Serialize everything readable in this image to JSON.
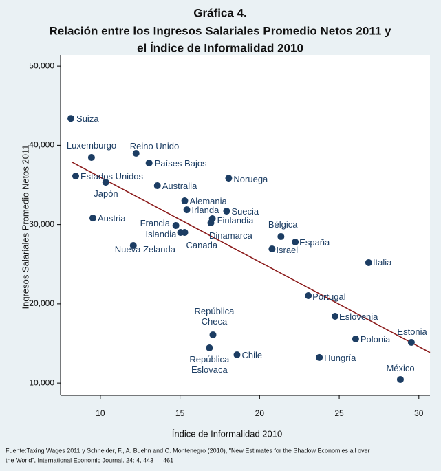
{
  "chart_data": {
    "type": "scatter",
    "title": [
      "Gráfica 4.",
      "Relación entre los Ingresos Salariales Promedio Netos 2011 y",
      "el Índice de Informalidad 2010"
    ],
    "xlabel": "Índice de Informalidad 2010",
    "ylabel": "Ingresos Salariales Promedio Netos 2011",
    "source": [
      "Fuente:Taxing Wages 2011 y Schneider, F., A. Buehn and C. Montenegro (2010), \"New Estimates for the Shadow Economies all over",
      "the World\", International Economic Journal. 24: 4, 443 — 461"
    ],
    "labels": [
      "Suiza",
      "Luxemburgo",
      "Reino Unido",
      "Países Bajos",
      "Estados Unidos",
      "Japón",
      "Australia",
      "Noruega",
      "Alemania",
      "Irlanda",
      "Suecia",
      "Finlandia",
      "Dinamarca",
      "Austria",
      "Francia",
      "Islandia",
      "Canada",
      "Nueva Zelanda",
      "Bélgica",
      "Israel",
      "España",
      "Italia",
      "Portugal",
      "Eslovenia",
      "República\nCheca",
      "República\nEslovaca",
      "Chile",
      "Hungría",
      "Polonia",
      "Estonia",
      "México"
    ],
    "x": [
      8.15,
      9.44,
      12.24,
      13.06,
      8.45,
      10.34,
      13.58,
      18.06,
      15.3,
      15.43,
      17.93,
      17.03,
      16.94,
      9.53,
      14.74,
      15.04,
      15.3,
      12.07,
      21.34,
      20.78,
      22.24,
      26.85,
      23.06,
      24.74,
      17.07,
      16.85,
      18.58,
      23.75,
      26.03,
      29.53,
      28.84
    ],
    "values": [
      43400,
      38470,
      38990,
      37770,
      36120,
      35340,
      34910,
      35860,
      33000,
      31870,
      31700,
      30750,
      30220,
      30830,
      29880,
      29010,
      29010,
      27360,
      28490,
      26930,
      27800,
      25200,
      21030,
      18430,
      16090,
      14440,
      13570,
      13230,
      15570,
      15130,
      10450
    ],
    "color": "#1c3d63",
    "trend": {
      "x": [
        8.2,
        30.7
      ],
      "values": [
        37900,
        13850
      ],
      "color": "#8b1a1a"
    },
    "xlim": [
      7.5,
      30.7
    ],
    "ylim": [
      8450,
      51400
    ],
    "xticks": [
      10,
      15,
      20,
      25,
      30
    ],
    "yticks": [
      {
        "value": 10000,
        "label": "10,000"
      },
      {
        "value": 20000,
        "label": "20,000"
      },
      {
        "value": 30000,
        "label": "30,000"
      },
      {
        "value": 40000,
        "label": "40,000"
      },
      {
        "value": 50000,
        "label": "50,000"
      }
    ],
    "grid": false
  }
}
